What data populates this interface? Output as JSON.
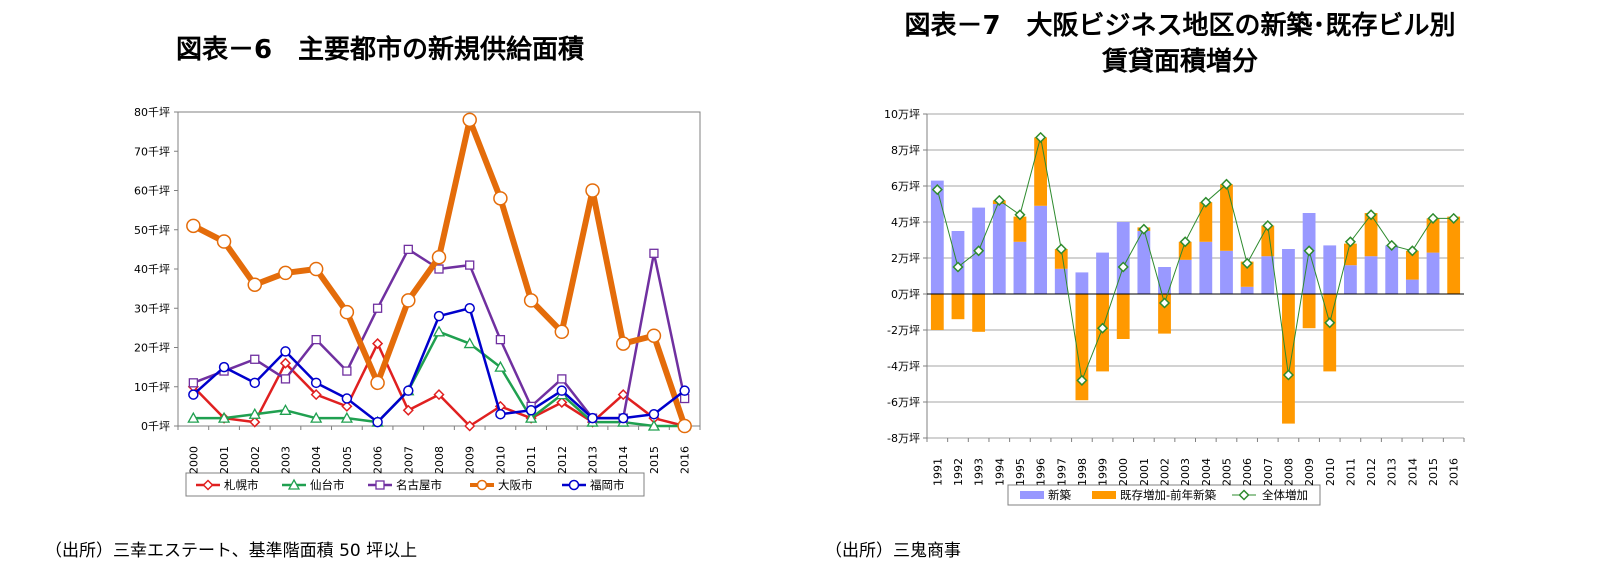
{
  "titles": {
    "left": "図表－6　主要都市の新規供給面積",
    "right_line1": "図表－7　大阪ビジネス地区の新築･既存ビル別",
    "right_line2": "賃貸面積増分"
  },
  "sources": {
    "left": "（出所）三幸エステート、基準階面積 50 坪以上",
    "right": "（出所）三鬼商事"
  },
  "chart_data": [
    {
      "type": "line",
      "x": [
        "2000",
        "2001",
        "2002",
        "2003",
        "2004",
        "2005",
        "2006",
        "2007",
        "2008",
        "2009",
        "2010",
        "2011",
        "2012",
        "2013",
        "2014",
        "2015",
        "2016"
      ],
      "ylim": [
        0,
        80
      ],
      "yticks": [
        "0千坪",
        "10千坪",
        "20千坪",
        "30千坪",
        "40千坪",
        "50千坪",
        "60千坪",
        "70千坪",
        "80千坪"
      ],
      "grid": false,
      "legend_position": "bottom",
      "series": [
        {
          "name": "札幌市",
          "color": "#e02020",
          "marker": "diamond",
          "width": 2.5,
          "values": [
            10,
            2,
            1,
            16,
            8,
            5,
            21,
            4,
            8,
            0,
            5,
            2,
            6,
            1,
            8,
            2,
            0
          ]
        },
        {
          "name": "仙台市",
          "color": "#20a050",
          "marker": "triangle",
          "width": 2.5,
          "values": [
            2,
            2,
            3,
            4,
            2,
            2,
            1,
            9,
            24,
            21,
            15,
            2,
            8,
            1,
            1,
            0,
            0
          ]
        },
        {
          "name": "名古屋市",
          "color": "#7030a0",
          "marker": "square",
          "width": 2.5,
          "values": [
            11,
            14,
            17,
            12,
            22,
            14,
            30,
            45,
            40,
            41,
            22,
            5,
            12,
            2,
            2,
            44,
            7
          ]
        },
        {
          "name": "大阪市",
          "color": "#e46c0a",
          "marker": "circle-large",
          "width": 6,
          "values": [
            51,
            47,
            36,
            39,
            40,
            29,
            11,
            32,
            43,
            78,
            58,
            32,
            24,
            60,
            21,
            23,
            0
          ]
        },
        {
          "name": "福岡市",
          "color": "#0000cc",
          "marker": "circle",
          "width": 2.5,
          "values": [
            8,
            15,
            11,
            19,
            11,
            7,
            1,
            9,
            28,
            30,
            3,
            4,
            9,
            2,
            2,
            3,
            9
          ]
        }
      ]
    },
    {
      "type": "bar",
      "categories": [
        "1991",
        "1992",
        "1993",
        "1994",
        "1995",
        "1996",
        "1997",
        "1998",
        "1999",
        "2000",
        "2001",
        "2002",
        "2003",
        "2004",
        "2005",
        "2006",
        "2007",
        "2008",
        "2009",
        "2010",
        "2011",
        "2012",
        "2013",
        "2014",
        "2015",
        "2016"
      ],
      "ylim": [
        -8,
        10
      ],
      "yticks": [
        "-8万坪",
        "-6万坪",
        "-4万坪",
        "-2万坪",
        "0万坪",
        "2万坪",
        "4万坪",
        "6万坪",
        "8万坪",
        "10万坪"
      ],
      "grid": true,
      "legend_position": "bottom",
      "stacked": true,
      "series": [
        {
          "name": "新築",
          "color": "#9999ff",
          "values": [
            6.3,
            3.5,
            4.8,
            5.0,
            2.9,
            4.9,
            1.4,
            1.2,
            2.3,
            4.0,
            3.5,
            1.5,
            1.9,
            2.9,
            2.4,
            0.4,
            2.1,
            2.5,
            4.5,
            2.7,
            1.6,
            2.1,
            2.7,
            0.8,
            2.3,
            0.0
          ]
        },
        {
          "name": "既存増加-前年新築",
          "color": "#ff9900",
          "values": [
            -2.0,
            -1.4,
            -2.1,
            0.2,
            1.4,
            3.8,
            1.1,
            -5.9,
            -4.3,
            -2.5,
            0.2,
            -2.2,
            1.0,
            2.2,
            3.7,
            1.4,
            1.7,
            -7.2,
            -1.9,
            -4.3,
            1.2,
            2.4,
            0.0,
            1.6,
            1.9,
            4.3
          ]
        },
        {
          "name": "全体増加",
          "color": "#2e8b2e",
          "marker": "diamond",
          "type": "line",
          "values": [
            5.8,
            1.5,
            2.4,
            5.2,
            4.4,
            8.7,
            2.5,
            -4.8,
            -1.9,
            1.5,
            3.6,
            -0.5,
            2.9,
            5.1,
            6.1,
            1.7,
            3.8,
            -4.5,
            2.4,
            -1.6,
            2.9,
            4.4,
            2.7,
            2.4,
            4.2,
            4.2
          ]
        }
      ]
    }
  ]
}
